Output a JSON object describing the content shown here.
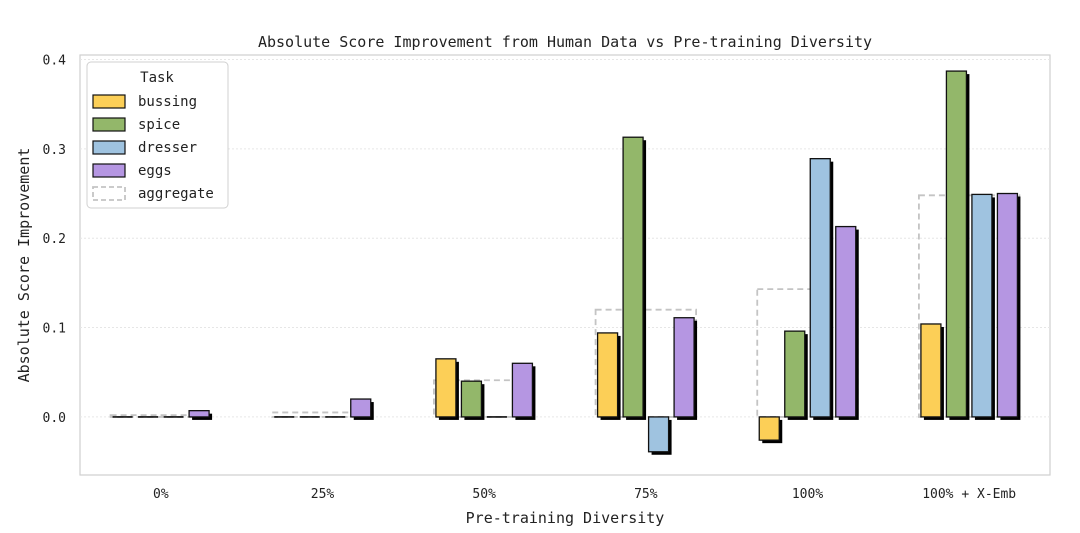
{
  "chart_data": {
    "type": "bar",
    "title": "Absolute Score Improvement from Human Data vs Pre-training Diversity",
    "xlabel": "Pre-training Diversity",
    "ylabel": "Absolute Score Improvement",
    "categories": [
      "0%",
      "25%",
      "50%",
      "75%",
      "100%",
      "100% + X-Emb"
    ],
    "ylim": [
      -0.065,
      0.405
    ],
    "yticks": [
      "0.0",
      "0.1",
      "0.2",
      "0.3",
      "0.4"
    ],
    "ytick_values": [
      0.0,
      0.1,
      0.2,
      0.3,
      0.4
    ],
    "grid": true,
    "legend": {
      "title": "Task",
      "placement": "top-left"
    },
    "series": [
      {
        "name": "bussing",
        "color": "#FCCF57",
        "values": [
          0.0,
          0.0,
          0.065,
          0.094,
          -0.026,
          0.104
        ]
      },
      {
        "name": "spice",
        "color": "#93B76A",
        "values": [
          0.0,
          0.0,
          0.04,
          0.313,
          0.096,
          0.387
        ]
      },
      {
        "name": "dresser",
        "color": "#9FC3E0",
        "values": [
          0.0,
          0.0,
          0.0,
          -0.039,
          0.289,
          0.249
        ]
      },
      {
        "name": "eggs",
        "color": "#B596E2",
        "values": [
          0.007,
          0.02,
          0.06,
          0.111,
          0.213,
          0.25
        ]
      }
    ],
    "aggregate": {
      "name": "aggregate",
      "color": "#C4C4C4",
      "style": "dashed",
      "values": [
        0.002,
        0.005,
        0.041,
        0.12,
        0.143,
        0.248
      ]
    }
  }
}
